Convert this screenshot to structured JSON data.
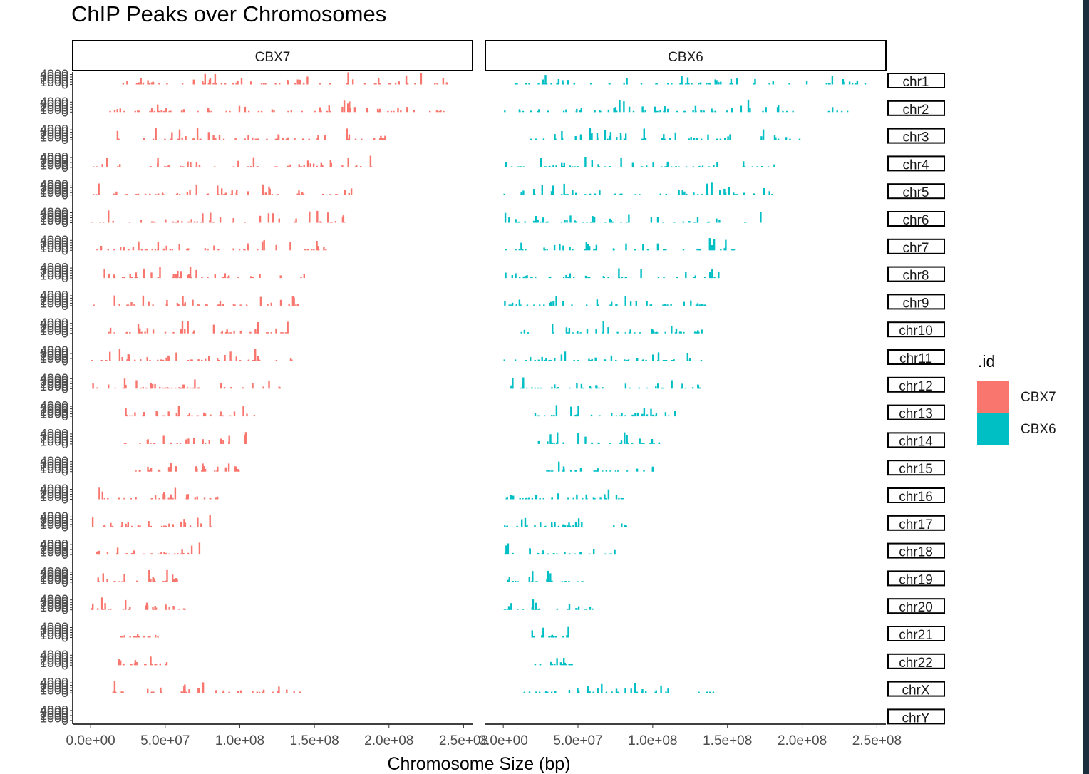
{
  "chart_data": {
    "type": "bar",
    "title": "ChIP Peaks over Chromosomes",
    "xlabel": "Chromosome Size (bp)",
    "ylabel": "",
    "facets_columns": [
      "CBX7",
      "CBX6"
    ],
    "facets_rows": [
      "chr1",
      "chr2",
      "chr3",
      "chr4",
      "chr5",
      "chr6",
      "chr7",
      "chr8",
      "chr9",
      "chr10",
      "chr11",
      "chr12",
      "chr13",
      "chr14",
      "chr15",
      "chr16",
      "chr17",
      "chr18",
      "chr19",
      "chr20",
      "chr21",
      "chr22",
      "chrX",
      "chrY"
    ],
    "x_ticks": [
      0,
      50000000,
      100000000,
      150000000,
      200000000,
      250000000
    ],
    "x_tick_labels": [
      "0.0e+00",
      "5.0e+07",
      "1.0e+08",
      "1.5e+08",
      "2.0e+08",
      "2.5e+08"
    ],
    "xlim": [
      -12000000,
      256000000
    ],
    "y_tick_labels": [
      "0",
      "1000",
      "2000",
      "3000",
      "4000"
    ],
    "ylim": [
      0,
      5000
    ],
    "legend": {
      "title": ".id",
      "position": "right",
      "entries": [
        {
          "name": "CBX7",
          "color": "#F8766D"
        },
        {
          "name": "CBX6",
          "color": "#00BFC4"
        }
      ]
    },
    "chrom_lengths": [
      248956422,
      242193529,
      198295559,
      190214555,
      181538259,
      170805979,
      159345973,
      145138636,
      138394717,
      133797422,
      135086622,
      133275309,
      114364328,
      107043718,
      101991189,
      90338345,
      83257441,
      80373285,
      58617616,
      64444167,
      46709983,
      50818468,
      156040895,
      57227415
    ],
    "peak_window": {
      "CBX7": [
        [
          12000000,
          246000000
        ],
        [
          10000000,
          242000000
        ],
        [
          12000000,
          198000000
        ],
        [
          0,
          190000000
        ],
        [
          0,
          178000000
        ],
        [
          0,
          170000000
        ],
        [
          0,
          158000000
        ],
        [
          8000000,
          146000000
        ],
        [
          0,
          140000000
        ],
        [
          0,
          133000000
        ],
        [
          0,
          135000000
        ],
        [
          0,
          133000000
        ],
        [
          20000000,
          115000000
        ],
        [
          22000000,
          106000000
        ],
        [
          29000000,
          100000000
        ],
        [
          0,
          90000000
        ],
        [
          0,
          80000000
        ],
        [
          0,
          78000000
        ],
        [
          0,
          58000000
        ],
        [
          0,
          63000000
        ],
        [
          18000000,
          47000000
        ],
        [
          17000000,
          52000000
        ],
        [
          10000000,
          140000000
        ],
        [
          0,
          0
        ]
      ],
      "CBX6": [
        [
          0,
          245000000
        ],
        [
          0,
          243000000
        ],
        [
          12000000,
          198000000
        ],
        [
          0,
          184000000
        ],
        [
          0,
          180000000
        ],
        [
          0,
          172000000
        ],
        [
          0,
          157000000
        ],
        [
          0,
          146000000
        ],
        [
          0,
          140000000
        ],
        [
          0,
          133000000
        ],
        [
          0,
          135000000
        ],
        [
          0,
          133000000
        ],
        [
          19000000,
          115000000
        ],
        [
          23000000,
          106000000
        ],
        [
          28000000,
          100000000
        ],
        [
          0,
          90000000
        ],
        [
          0,
          82000000
        ],
        [
          0,
          78000000
        ],
        [
          0,
          57000000
        ],
        [
          0,
          63000000
        ],
        [
          18000000,
          47000000
        ],
        [
          19000000,
          46000000
        ],
        [
          12000000,
          140000000
        ],
        [
          0,
          0
        ]
      ]
    },
    "peak_count_per_panel": 60,
    "colors": {
      "CBX7": "#F8766D",
      "CBX6": "#00BFC4"
    }
  }
}
